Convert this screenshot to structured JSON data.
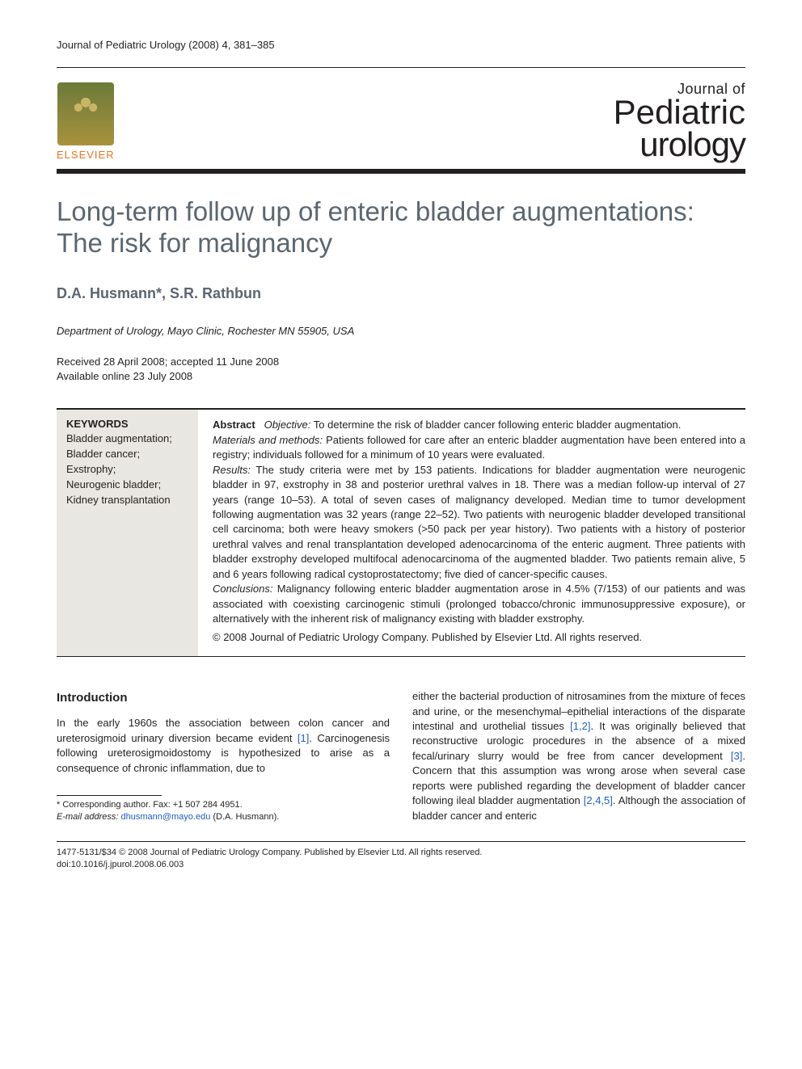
{
  "header": {
    "journal_ref": "Journal of Pediatric Urology (2008) 4, 381–385",
    "elsevier_label": "ELSEVIER",
    "journal_logo_small": "Journal of",
    "journal_logo_line1": "Pediatric",
    "journal_logo_line2": "urology"
  },
  "article": {
    "title": "Long-term follow up of enteric bladder augmentations: The risk for malignancy",
    "authors_html": "D.A. Husmann*, S.R. Rathbun",
    "author1": "D.A. Husmann",
    "author1_marker": "*",
    "author2": "S.R. Rathbun",
    "affiliation": "Department of Urology, Mayo Clinic, Rochester MN 55905, USA",
    "received": "Received 28 April 2008; accepted 11 June 2008",
    "available": "Available online 23 July 2008"
  },
  "keywords": {
    "heading": "KEYWORDS",
    "items": [
      "Bladder augmentation;",
      "Bladder cancer;",
      "Exstrophy;",
      "Neurogenic bladder;",
      "Kidney transplantation"
    ]
  },
  "abstract": {
    "label": "Abstract",
    "objective_head": "Objective:",
    "objective": " To determine the risk of bladder cancer following enteric bladder augmentation.",
    "methods_head": "Materials and methods:",
    "methods": " Patients followed for care after an enteric bladder augmentation have been entered into a registry; individuals followed for a minimum of 10 years were evaluated.",
    "results_head": "Results:",
    "results": " The study criteria were met by 153 patients. Indications for bladder augmentation were neurogenic bladder in 97, exstrophy in 38 and posterior urethral valves in 18. There was a median follow-up interval of 27 years (range 10–53). A total of seven cases of malignancy developed. Median time to tumor development following augmentation was 32 years (range 22–52). Two patients with neurogenic bladder developed transitional cell carcinoma; both were heavy smokers (>50 pack per year history). Two patients with a history of posterior urethral valves and renal transplantation developed adenocarcinoma of the enteric augment. Three patients with bladder exstrophy developed multifocal adenocarcinoma of the augmented bladder. Two patients remain alive, 5 and 6 years following radical cystoprostatectomy; five died of cancer-specific causes.",
    "conclusions_head": "Conclusions:",
    "conclusions": " Malignancy following enteric bladder augmentation arose in 4.5% (7/153) of our patients and was associated with coexisting carcinogenic stimuli (prolonged tobacco/chronic immunosuppressive exposure), or alternatively with the inherent risk of malignancy existing with bladder exstrophy.",
    "copyright": "© 2008 Journal of Pediatric Urology Company. Published by Elsevier Ltd. All rights reserved."
  },
  "body": {
    "intro_head": "Introduction",
    "col1_p1a": "In the early 1960s the association between colon cancer and ureterosigmoid urinary diversion became evident ",
    "ref1": "[1]",
    "col1_p1b": ". Carcinogenesis following ureterosigmoidostomy is hypothesized to arise as a consequence of chronic inflammation, due to",
    "col2_p1a": "either the bacterial production of nitrosamines from the mixture of feces and urine, or the mesenchymal–epithelial interactions of the disparate intestinal and urothelial tissues ",
    "ref12": "[1,2]",
    "col2_p1b": ". It was originally believed that reconstructive urologic procedures in the absence of a mixed fecal/urinary slurry would be free from cancer development ",
    "ref3": "[3]",
    "col2_p1c": ". Concern that this assumption was wrong arose when several case reports were published regarding the development of bladder cancer following ileal bladder augmentation ",
    "ref245": "[2,4,5]",
    "col2_p1d": ". Although the association of bladder cancer and enteric"
  },
  "footnote": {
    "corr_label": "* Corresponding author. Fax: +1 507 284 4951.",
    "email_label": "E-mail address:",
    "email": "dhusmann@mayo.edu",
    "email_suffix": " (D.A. Husmann)."
  },
  "footer": {
    "line1": "1477-5131/$34 © 2008 Journal of Pediatric Urology Company. Published by Elsevier Ltd. All rights reserved.",
    "line2": "doi:10.1016/j.jpurol.2008.06.003"
  },
  "style": {
    "title_color": "#5b6670",
    "author_color": "#5b6670",
    "keywords_bg": "#e9e7e1",
    "link_color": "#2060c0"
  }
}
